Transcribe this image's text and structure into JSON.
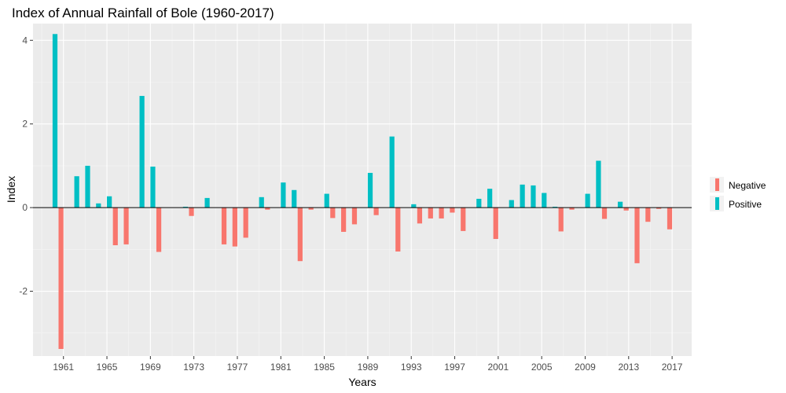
{
  "chart_data": {
    "type": "bar",
    "title": "Index of Annual Rainfall of Bole (1960-2017)",
    "xlabel": "Years",
    "ylabel": "Index",
    "ylim": [
      -3.55,
      4.4
    ],
    "xlim": [
      1958.2,
      2018.8
    ],
    "y_ticks": [
      4,
      2,
      0,
      -2
    ],
    "y_tick_labels": [
      "4",
      "2",
      "0",
      "-2"
    ],
    "x_ticks": [
      1961,
      1965,
      1969,
      1973,
      1977,
      1981,
      1985,
      1989,
      1993,
      1997,
      2001,
      2005,
      2009,
      2013,
      2017
    ],
    "x_tick_labels": [
      "1961",
      "1965",
      "1969",
      "1973",
      "1977",
      "1981",
      "1985",
      "1989",
      "1993",
      "1997",
      "2001",
      "2005",
      "2009",
      "2013",
      "2017"
    ],
    "grid": true,
    "legend_position": "right",
    "legend": [
      {
        "name": "Negative",
        "color": "#F8766D"
      },
      {
        "name": "Positive",
        "color": "#00BFC4"
      }
    ],
    "colors": {
      "negative": "#F8766D",
      "positive": "#00BFC4",
      "panel": "#EBEBEB",
      "grid": "#FFFFFF",
      "zero_line": "#000000"
    },
    "years": [
      1960,
      1961,
      1962,
      1963,
      1964,
      1965,
      1966,
      1967,
      1968,
      1969,
      1970,
      1971,
      1972,
      1973,
      1974,
      1975,
      1976,
      1977,
      1978,
      1979,
      1980,
      1981,
      1982,
      1983,
      1984,
      1985,
      1986,
      1987,
      1988,
      1989,
      1990,
      1991,
      1992,
      1993,
      1994,
      1995,
      1996,
      1997,
      1998,
      1999,
      2000,
      2001,
      2002,
      2003,
      2004,
      2005,
      2006,
      2007,
      2008,
      2009,
      2010,
      2011,
      2012,
      2013,
      2014,
      2015,
      2016,
      2017
    ],
    "values": [
      4.15,
      -3.38,
      0.75,
      1.0,
      0.1,
      0.27,
      -0.9,
      -0.88,
      2.67,
      0.98,
      -1.06,
      0.0,
      0.02,
      -0.2,
      0.23,
      0.0,
      -0.88,
      -0.93,
      -0.72,
      0.25,
      -0.05,
      0.6,
      0.42,
      -1.28,
      -0.05,
      0.33,
      -0.25,
      -0.58,
      -0.4,
      0.83,
      -0.18,
      1.7,
      -1.05,
      0.08,
      -0.38,
      -0.26,
      -0.26,
      -0.12,
      -0.56,
      0.21,
      0.45,
      -0.75,
      0.18,
      0.55,
      0.53,
      0.35,
      0.02,
      -0.57,
      -0.05,
      0.33,
      1.12,
      -0.27,
      0.14,
      -0.07,
      -1.33,
      -0.34,
      -0.03,
      -0.52
    ]
  }
}
